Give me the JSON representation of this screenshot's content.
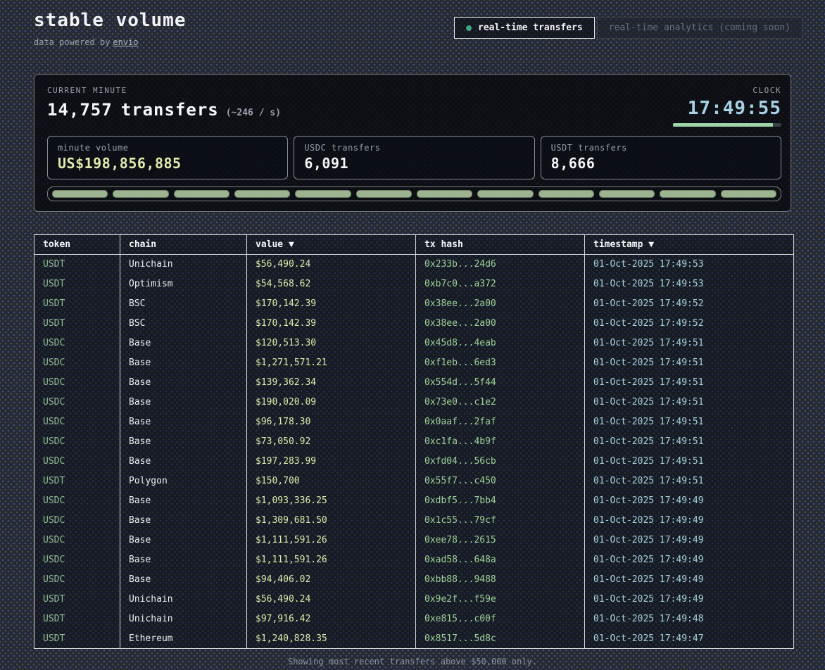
{
  "app": {
    "title": "stable volume",
    "powered_by_prefix": "data powered by",
    "powered_by_link": "envio"
  },
  "tabs": {
    "active": "real-time transfers",
    "inactive": "real-time analytics (coming soon)"
  },
  "stats": {
    "current_minute_label": "CURRENT MINUTE",
    "transfers_count": "14,757",
    "transfers_suffix": "transfers",
    "rate": "(~246 / s)",
    "clock_label": "CLOCK",
    "clock_time": "17:49:55",
    "clock_progress_pct": 92,
    "minute_bar_segments": 12,
    "cards": [
      {
        "label": "minute volume",
        "value": "US$198,856,885"
      },
      {
        "label": "USDC transfers",
        "value": "6,091"
      },
      {
        "label": "USDT transfers",
        "value": "8,666"
      }
    ]
  },
  "table": {
    "columns": [
      "token",
      "chain",
      "value ▼",
      "tx hash",
      "timestamp ▼"
    ],
    "rows": [
      [
        "USDT",
        "Unichain",
        "$56,490.24",
        "0x233b...24d6",
        "01-Oct-2025 17:49:53"
      ],
      [
        "USDT",
        "Optimism",
        "$54,568.62",
        "0xb7c0...a372",
        "01-Oct-2025 17:49:53"
      ],
      [
        "USDT",
        "BSC",
        "$170,142.39",
        "0x38ee...2a00",
        "01-Oct-2025 17:49:52"
      ],
      [
        "USDT",
        "BSC",
        "$170,142.39",
        "0x38ee...2a00",
        "01-Oct-2025 17:49:52"
      ],
      [
        "USDC",
        "Base",
        "$120,513.30",
        "0x45d8...4eab",
        "01-Oct-2025 17:49:51"
      ],
      [
        "USDC",
        "Base",
        "$1,271,571.21",
        "0xf1eb...6ed3",
        "01-Oct-2025 17:49:51"
      ],
      [
        "USDC",
        "Base",
        "$139,362.34",
        "0x554d...5f44",
        "01-Oct-2025 17:49:51"
      ],
      [
        "USDC",
        "Base",
        "$190,020.09",
        "0x73e0...c1e2",
        "01-Oct-2025 17:49:51"
      ],
      [
        "USDC",
        "Base",
        "$96,178.30",
        "0x0aaf...2faf",
        "01-Oct-2025 17:49:51"
      ],
      [
        "USDC",
        "Base",
        "$73,050.92",
        "0xc1fa...4b9f",
        "01-Oct-2025 17:49:51"
      ],
      [
        "USDC",
        "Base",
        "$197,283.99",
        "0xfd04...56cb",
        "01-Oct-2025 17:49:51"
      ],
      [
        "USDT",
        "Polygon",
        "$150,700",
        "0x55f7...c450",
        "01-Oct-2025 17:49:51"
      ],
      [
        "USDC",
        "Base",
        "$1,093,336.25",
        "0xdbf5...7bb4",
        "01-Oct-2025 17:49:49"
      ],
      [
        "USDC",
        "Base",
        "$1,309,681.50",
        "0x1c55...79cf",
        "01-Oct-2025 17:49:49"
      ],
      [
        "USDC",
        "Base",
        "$1,111,591.26",
        "0xee78...2615",
        "01-Oct-2025 17:49:49"
      ],
      [
        "USDC",
        "Base",
        "$1,111,591.26",
        "0xad58...648a",
        "01-Oct-2025 17:49:49"
      ],
      [
        "USDC",
        "Base",
        "$94,406.02",
        "0xbb88...9488",
        "01-Oct-2025 17:49:49"
      ],
      [
        "USDT",
        "Unichain",
        "$56,490.24",
        "0x9e2f...f59e",
        "01-Oct-2025 17:49:49"
      ],
      [
        "USDT",
        "Unichain",
        "$97,916.42",
        "0xe815...c00f",
        "01-Oct-2025 17:49:48"
      ],
      [
        "USDT",
        "Ethereum",
        "$1,240,828.35",
        "0x8517...5d8c",
        "01-Oct-2025 17:49:47"
      ]
    ]
  },
  "footer": {
    "note": "Showing most recent transfers above $50,000 only."
  },
  "colors": {
    "live-dot": "#3fa37c",
    "clock": "#a7d1e4",
    "clock-fill": "#9fd4a8",
    "volume": "#e0ebae",
    "segment": "#a9c29b",
    "token": "#8fbc96",
    "value": "#e0ebae",
    "hash": "#9ed29b",
    "timestamp": "#a6d3dd"
  }
}
